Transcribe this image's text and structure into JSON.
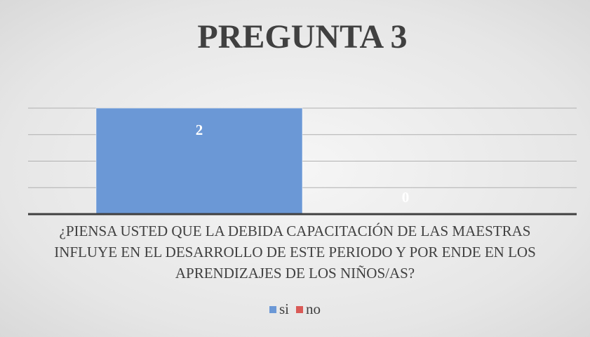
{
  "chart_data": {
    "type": "bar",
    "title": "PREGUNTA 3",
    "categories": [
      "¿PIENSA USTED QUE LA DEBIDA CAPACITACIÓN DE LAS MAESTRAS INFLUYE EN EL DESARROLLO DE ESTE PERIODO Y POR ENDE EN LOS APRENDIZAJES DE LOS NIÑOS/AS?"
    ],
    "series": [
      {
        "name": "si",
        "color": "#6b98d6",
        "values": [
          2
        ]
      },
      {
        "name": "no",
        "color": "#d95a57",
        "values": [
          0
        ]
      }
    ],
    "ylim": [
      0,
      2
    ],
    "yticks": [
      0,
      0.5,
      1,
      1.5,
      2
    ],
    "grid": true,
    "legend": "bottom"
  }
}
